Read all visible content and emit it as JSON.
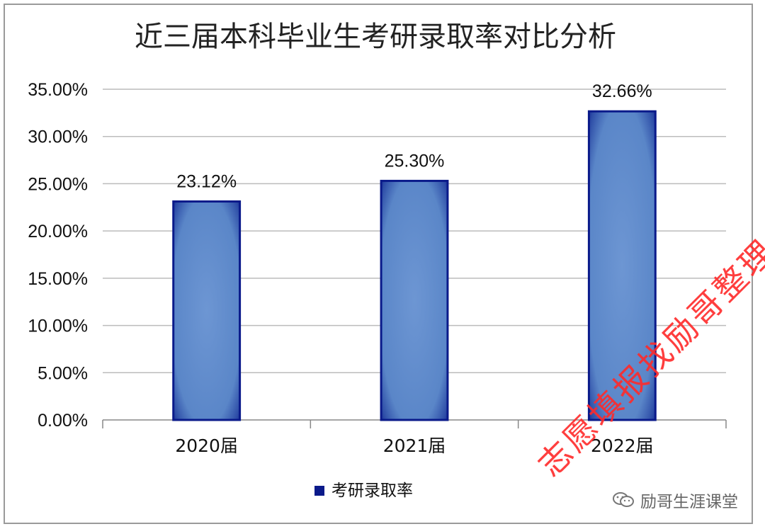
{
  "chart_data": {
    "type": "bar",
    "title": "近三届本科毕业生考研录取率对比分析",
    "categories": [
      "2020届",
      "2021届",
      "2022届"
    ],
    "series": [
      {
        "name": "考研录取率",
        "values": [
          23.12,
          25.3,
          32.66
        ]
      }
    ],
    "data_labels": [
      "23.12%",
      "25.30%",
      "32.66%"
    ],
    "y_ticks": [
      "0.00%",
      "5.00%",
      "10.00%",
      "15.00%",
      "20.00%",
      "25.00%",
      "30.00%",
      "35.00%"
    ],
    "ylim": [
      0,
      35
    ],
    "grid": true,
    "legend_position": "bottom",
    "colors": {
      "bar_fill": "#5a86c8",
      "bar_edge": "#0a1a8a",
      "legend_swatch": "#0a1a8a",
      "grid": "#bcbcbc"
    }
  },
  "watermark": "志愿填报找励哥整理",
  "source_label": "励哥生涯课堂"
}
